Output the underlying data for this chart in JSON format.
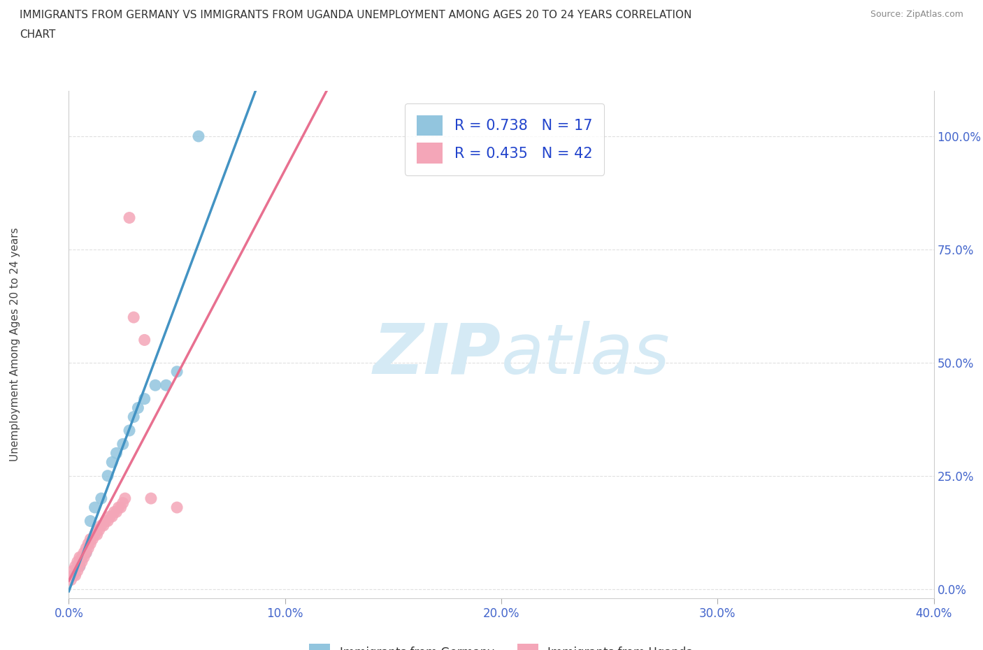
{
  "title_line1": "IMMIGRANTS FROM GERMANY VS IMMIGRANTS FROM UGANDA UNEMPLOYMENT AMONG AGES 20 TO 24 YEARS CORRELATION",
  "title_line2": "CHART",
  "source": "Source: ZipAtlas.com",
  "ylabel": "Unemployment Among Ages 20 to 24 years",
  "xlim": [
    0.0,
    0.4
  ],
  "ylim": [
    -0.02,
    1.1
  ],
  "xticks": [
    0.0,
    0.1,
    0.2,
    0.3,
    0.4
  ],
  "xticklabels": [
    "0.0%",
    "10.0%",
    "20.0%",
    "30.0%",
    "40.0%"
  ],
  "yticks": [
    0.0,
    0.25,
    0.5,
    0.75,
    1.0
  ],
  "yticklabels": [
    "0.0%",
    "25.0%",
    "50.0%",
    "75.0%",
    "100.0%"
  ],
  "germany_color": "#92c5de",
  "uganda_color": "#f4a6b8",
  "germany_R": 0.738,
  "germany_N": 17,
  "uganda_R": 0.435,
  "uganda_N": 42,
  "germany_scatter_x": [
    0.005,
    0.008,
    0.01,
    0.012,
    0.015,
    0.018,
    0.02,
    0.022,
    0.025,
    0.028,
    0.03,
    0.032,
    0.035,
    0.04,
    0.045,
    0.05,
    0.06
  ],
  "germany_scatter_y": [
    0.05,
    0.08,
    0.15,
    0.18,
    0.2,
    0.25,
    0.28,
    0.3,
    0.32,
    0.35,
    0.38,
    0.4,
    0.42,
    0.45,
    0.45,
    0.48,
    1.0
  ],
  "uganda_scatter_x": [
    0.001,
    0.002,
    0.002,
    0.003,
    0.003,
    0.004,
    0.004,
    0.005,
    0.005,
    0.005,
    0.006,
    0.006,
    0.007,
    0.007,
    0.008,
    0.008,
    0.009,
    0.009,
    0.01,
    0.01,
    0.011,
    0.012,
    0.013,
    0.013,
    0.014,
    0.015,
    0.016,
    0.017,
    0.018,
    0.019,
    0.02,
    0.021,
    0.022,
    0.023,
    0.024,
    0.025,
    0.026,
    0.028,
    0.03,
    0.035,
    0.038,
    0.05
  ],
  "uganda_scatter_y": [
    0.02,
    0.03,
    0.04,
    0.03,
    0.05,
    0.04,
    0.06,
    0.05,
    0.06,
    0.07,
    0.06,
    0.07,
    0.07,
    0.08,
    0.08,
    0.09,
    0.09,
    0.1,
    0.1,
    0.11,
    0.11,
    0.12,
    0.12,
    0.13,
    0.13,
    0.14,
    0.14,
    0.15,
    0.15,
    0.16,
    0.16,
    0.17,
    0.17,
    0.18,
    0.18,
    0.19,
    0.2,
    0.82,
    0.6,
    0.55,
    0.2,
    0.18
  ],
  "germany_line_color": "#4393c3",
  "uganda_line_color": "#e87090",
  "watermark_color": "#d5eaf5",
  "background_color": "#ffffff",
  "grid_color": "#e0e0e0",
  "tick_color": "#4466cc",
  "legend_label_color": "#2244cc"
}
